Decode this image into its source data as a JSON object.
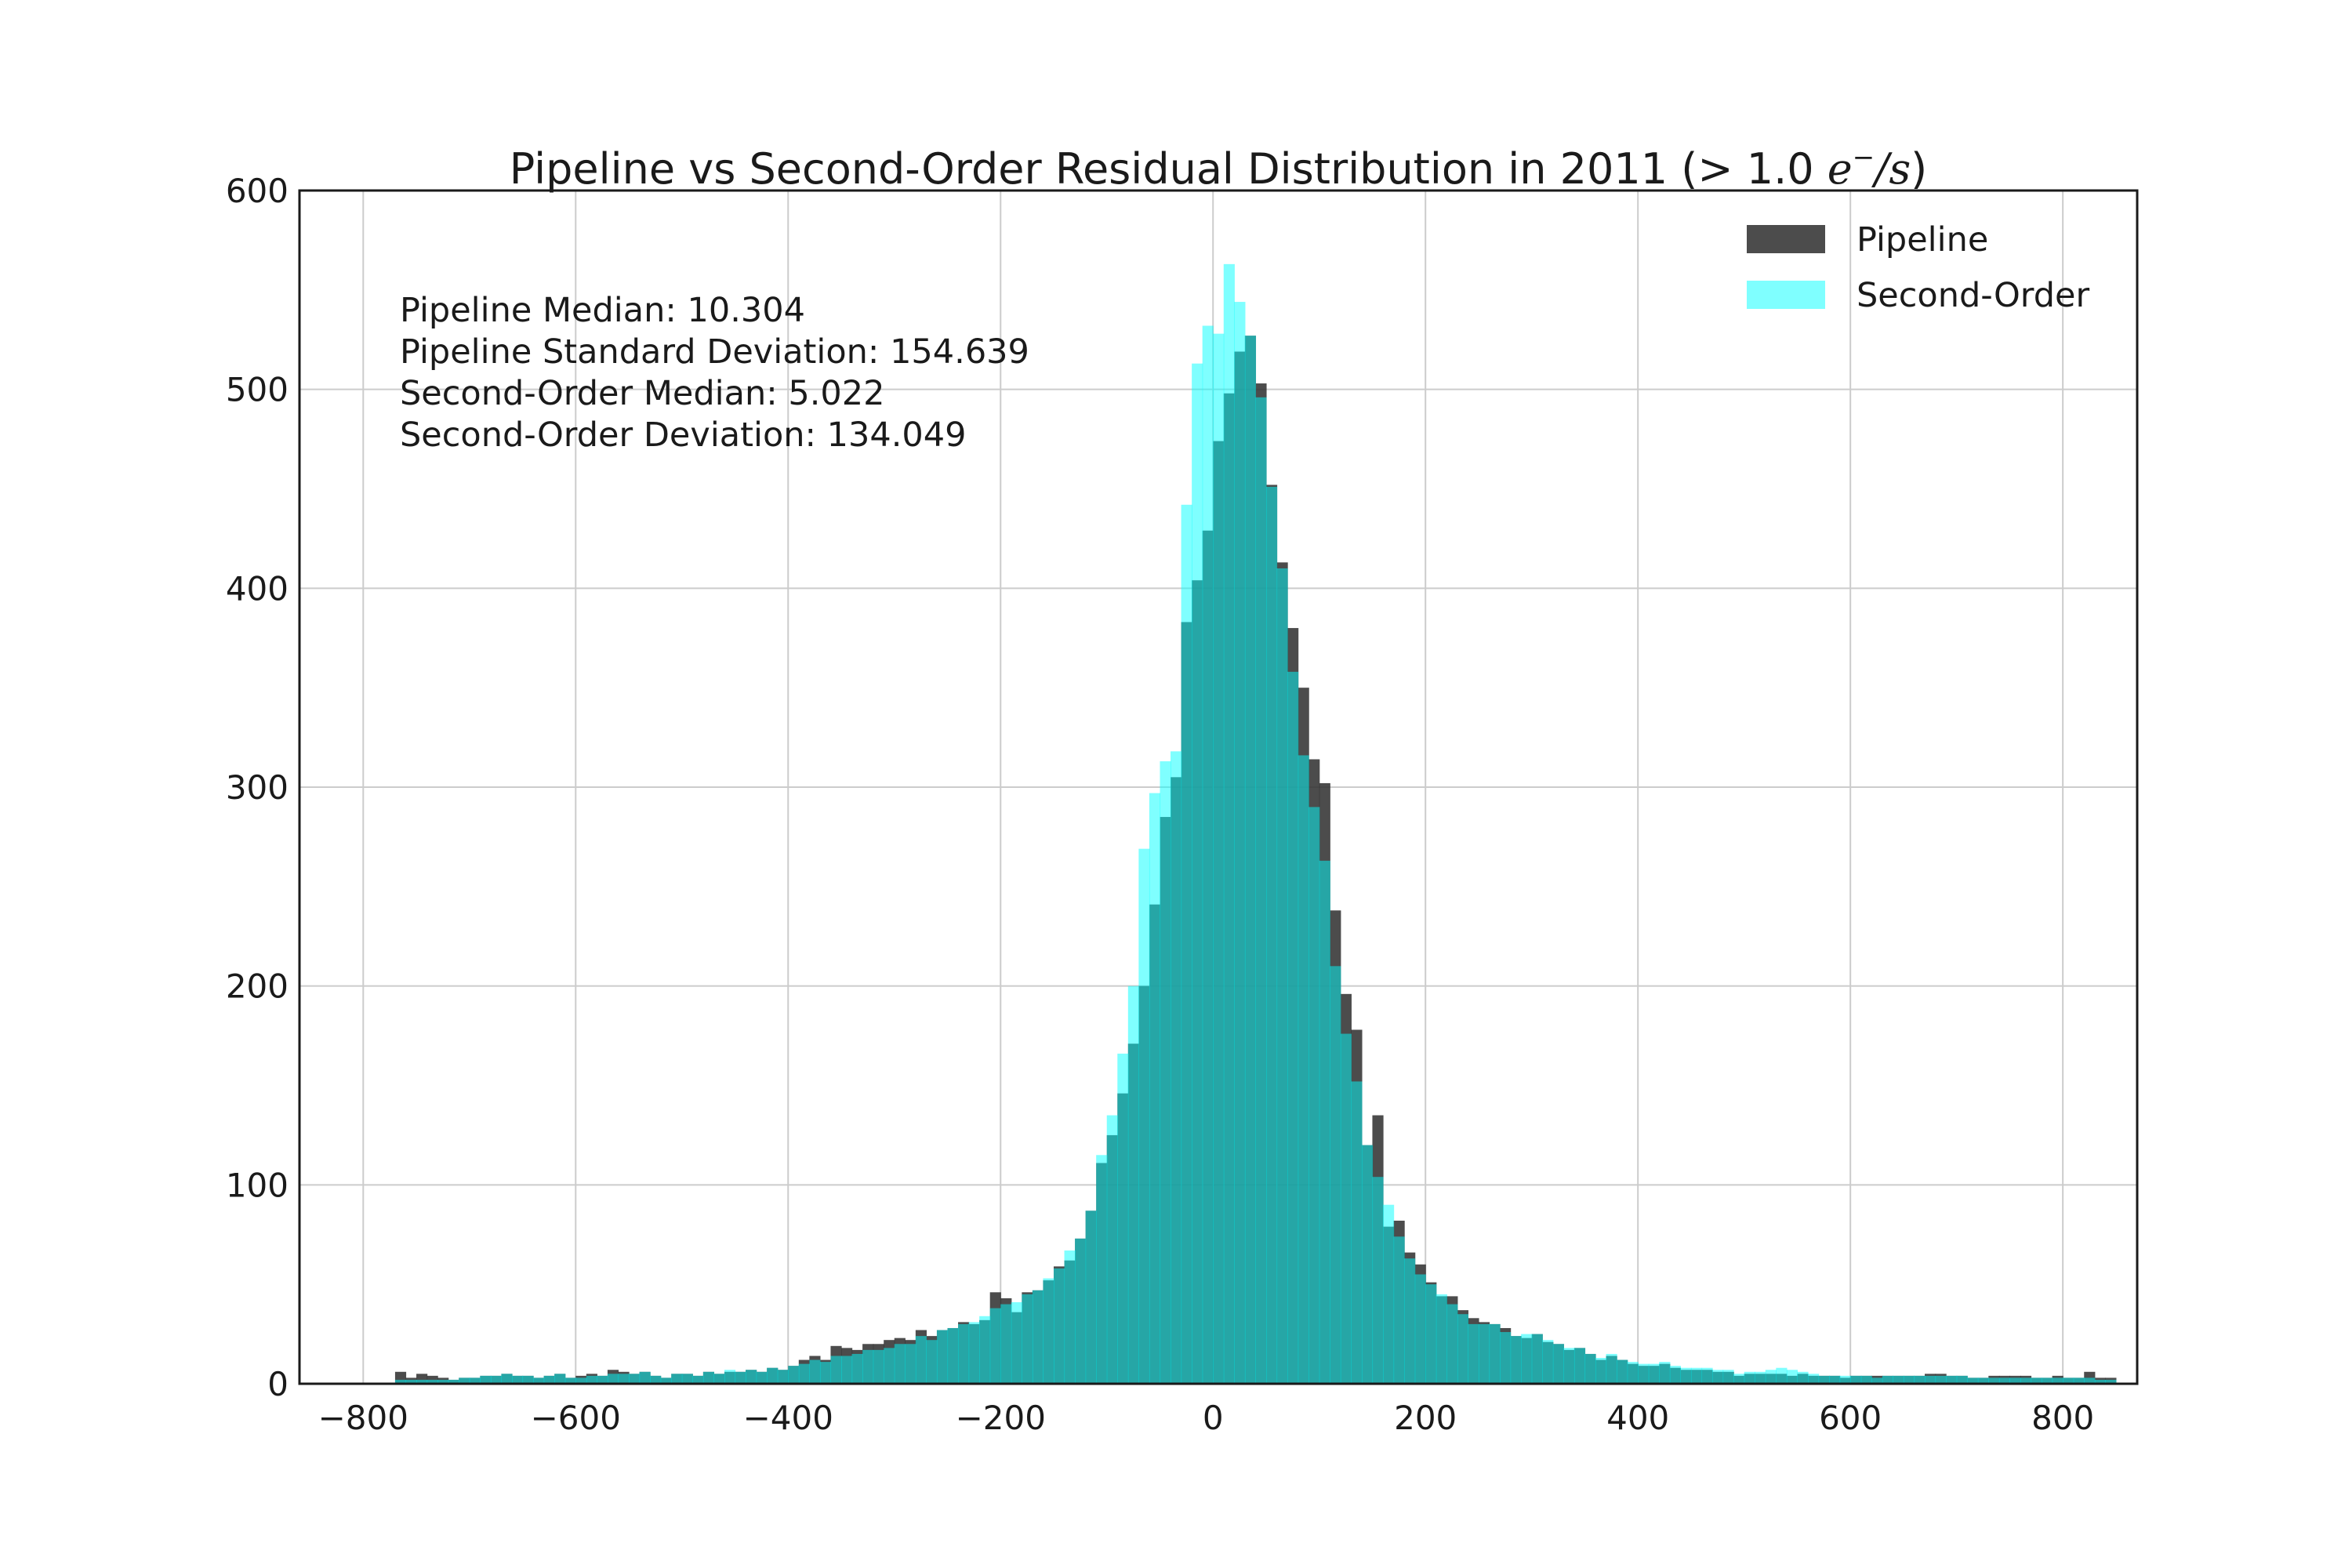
{
  "chart_data": {
    "type": "bar",
    "subtype": "overlaid-histogram",
    "title_parts": {
      "prefix": "Pipeline vs Second-Order Residual Distribution in 2011 (> 1.0 ",
      "math_base": "e",
      "math_sup": "−",
      "math_rest": "/s",
      "suffix": ")"
    },
    "xlabel": "",
    "ylabel": "",
    "xlim": [
      -860,
      870
    ],
    "ylim": [
      0,
      600
    ],
    "x_ticks": [
      -800,
      -600,
      -400,
      -200,
      0,
      200,
      400,
      600,
      800
    ],
    "x_tick_labels": [
      "−800",
      "−600",
      "−400",
      "−200",
      "0",
      "200",
      "400",
      "600",
      "800"
    ],
    "y_ticks": [
      0,
      100,
      200,
      300,
      400,
      500,
      600
    ],
    "y_tick_labels": [
      "0",
      "100",
      "200",
      "300",
      "400",
      "500",
      "600"
    ],
    "grid": true,
    "legend_position": "top-right",
    "bin_start": -770,
    "bin_width": 10,
    "series": [
      {
        "name": "Pipeline",
        "color": "#333333",
        "opacity": 0.88,
        "values": [
          6,
          3,
          5,
          4,
          3,
          2,
          3,
          3,
          4,
          4,
          5,
          4,
          4,
          3,
          4,
          5,
          3,
          4,
          5,
          4,
          7,
          6,
          5,
          6,
          4,
          3,
          5,
          5,
          4,
          6,
          5,
          6,
          6,
          7,
          6,
          8,
          7,
          9,
          12,
          14,
          12,
          19,
          18,
          17,
          20,
          20,
          22,
          23,
          22,
          27,
          24,
          27,
          28,
          31,
          30,
          32,
          46,
          43,
          36,
          46,
          47,
          52,
          59,
          62,
          73,
          87,
          111,
          125,
          146,
          171,
          200,
          241,
          285,
          305,
          383,
          404,
          429,
          474,
          498,
          519,
          527,
          503,
          452,
          413,
          380,
          350,
          314,
          302,
          238,
          196,
          178,
          120,
          135,
          79,
          82,
          66,
          60,
          51,
          44,
          44,
          37,
          33,
          31,
          30,
          28,
          24,
          23,
          25,
          21,
          20,
          17,
          18,
          15,
          12,
          14,
          12,
          10,
          9,
          9,
          10,
          8,
          7,
          7,
          7,
          6,
          6,
          4,
          5,
          5,
          5,
          5,
          4,
          5,
          4,
          4,
          4,
          3,
          4,
          4,
          4,
          4,
          4,
          4,
          4,
          5,
          5,
          4,
          4,
          3,
          3,
          4,
          4,
          4,
          4,
          3,
          3,
          4,
          3,
          3,
          6,
          3,
          3
        ]
      },
      {
        "name": "Second-Order",
        "color": "#00ffff",
        "opacity": 0.5,
        "values": [
          2,
          2,
          2,
          2,
          2,
          2,
          3,
          3,
          4,
          4,
          5,
          4,
          4,
          3,
          4,
          5,
          3,
          3,
          4,
          4,
          5,
          5,
          5,
          6,
          4,
          3,
          5,
          5,
          4,
          6,
          5,
          7,
          6,
          7,
          6,
          8,
          7,
          9,
          10,
          12,
          11,
          14,
          14,
          15,
          17,
          17,
          18,
          20,
          20,
          24,
          22,
          27,
          28,
          30,
          31,
          34,
          38,
          40,
          41,
          45,
          47,
          53,
          58,
          67,
          73,
          87,
          115,
          135,
          166,
          200,
          269,
          297,
          313,
          318,
          442,
          513,
          532,
          528,
          563,
          544,
          527,
          496,
          451,
          410,
          358,
          316,
          290,
          263,
          210,
          176,
          152,
          120,
          104,
          90,
          74,
          63,
          55,
          50,
          45,
          40,
          35,
          30,
          30,
          30,
          26,
          24,
          25,
          25,
          22,
          20,
          18,
          18,
          15,
          13,
          15,
          12,
          11,
          10,
          10,
          11,
          9,
          8,
          8,
          8,
          7,
          7,
          5,
          6,
          6,
          7,
          8,
          7,
          6,
          5,
          4,
          4,
          4,
          4,
          4,
          3,
          4,
          4,
          4,
          4,
          4,
          4,
          4,
          4,
          3,
          3,
          3,
          3,
          3,
          3,
          3,
          3,
          3,
          3,
          3,
          3,
          2,
          2
        ]
      }
    ],
    "annotation_lines": [
      "Pipeline Median: 10.304",
      "Pipeline Standard Deviation: 154.639",
      "Second-Order Median: 5.022",
      "Second-Order Deviation: 134.049"
    ]
  }
}
